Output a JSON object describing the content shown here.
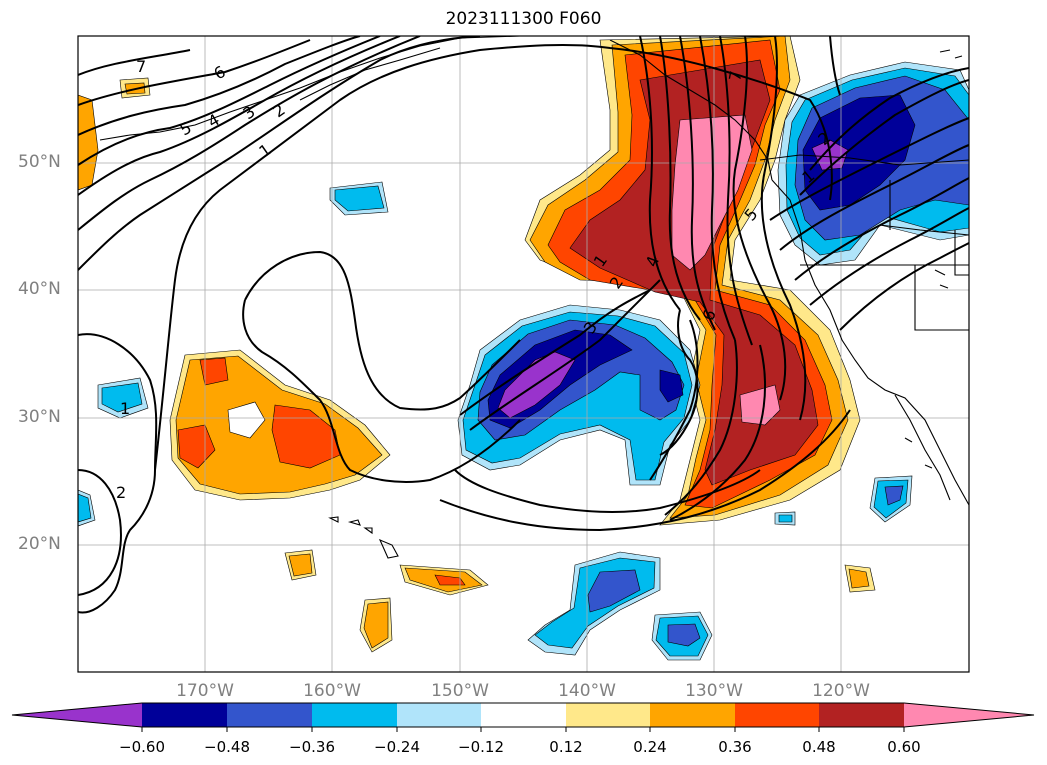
{
  "title": "2023111300 F060",
  "lat_labels": [
    "50°N",
    "40°N",
    "30°N",
    "20°N"
  ],
  "lon_labels": [
    "170°W",
    "160°W",
    "150°W",
    "140°W",
    "130°W",
    "120°W"
  ],
  "colorbar": {
    "ticks": [
      "−0.60",
      "−0.48",
      "−0.36",
      "−0.24",
      "−0.12",
      "0.12",
      "0.24",
      "0.36",
      "0.48",
      "0.60"
    ],
    "colors": [
      "#9933cc",
      "#000099",
      "#3355cc",
      "#00bbee",
      "#b0e4fa",
      "#ffffff",
      "#ffe88a",
      "#ffa500",
      "#ff4500",
      "#b22222",
      "#ff88b0"
    ]
  },
  "contour_labels": [
    "7",
    "6",
    "5",
    "4",
    "3",
    "2",
    "1",
    "1",
    "2",
    "1",
    "2",
    "3",
    "4",
    "5",
    "6",
    "7",
    "1",
    "2"
  ],
  "map": {
    "extent_lon": [
      -180,
      -110
    ],
    "extent_lat": [
      10,
      60
    ],
    "gridlines": true
  }
}
